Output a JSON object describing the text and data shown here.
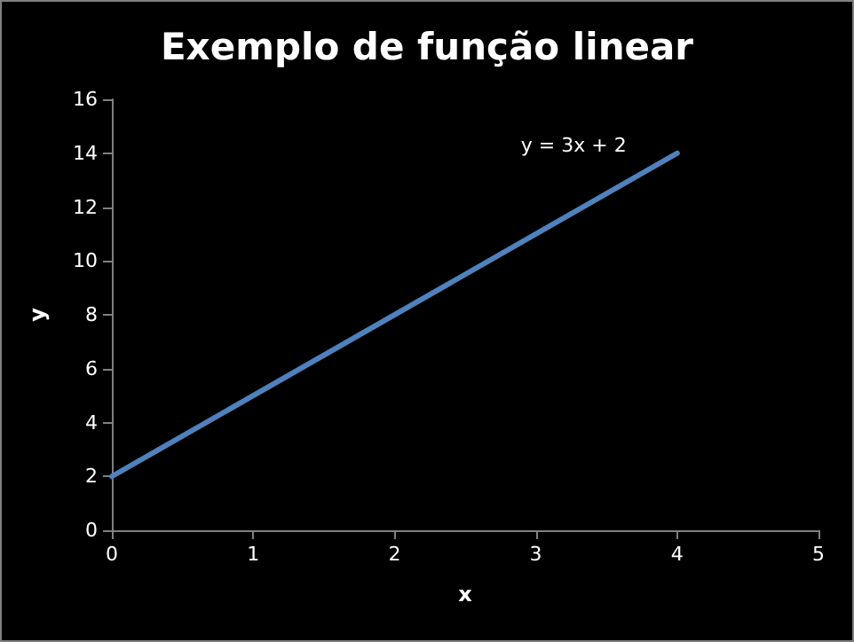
{
  "chart_data": {
    "type": "line",
    "title": "Exemplo de função linear",
    "xlabel": "x",
    "ylabel": "y",
    "x": [
      0,
      4
    ],
    "series": [
      {
        "name": "y = 3x + 2",
        "color": "#4f81bd",
        "values": [
          2,
          14
        ]
      }
    ],
    "xlim": [
      0,
      5
    ],
    "xticks": [
      0,
      1,
      2,
      3,
      4,
      5
    ],
    "ylim": [
      0,
      16
    ],
    "yticks": [
      0,
      2,
      4,
      6,
      8,
      10,
      12,
      14,
      16
    ],
    "grid": false,
    "legend": false,
    "marker": "none",
    "line_style": "solid"
  }
}
